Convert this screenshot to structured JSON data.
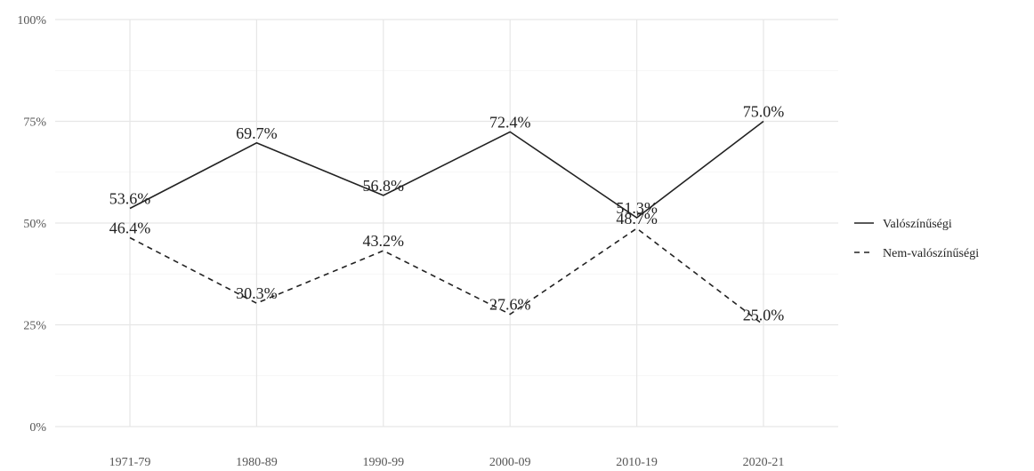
{
  "chart_data": {
    "type": "line",
    "title": "",
    "xlabel": "",
    "ylabel": "",
    "categories": [
      "1971-79",
      "1980-89",
      "1990-99",
      "2000-09",
      "2010-19",
      "2020-21"
    ],
    "ylim": [
      0,
      100
    ],
    "yticks": [
      0,
      25,
      50,
      75,
      100
    ],
    "ytick_labels": [
      "0%",
      "25%",
      "50%",
      "75%",
      "100%"
    ],
    "grid": true,
    "legend_position": "right",
    "series": [
      {
        "name": "Valószínűségi",
        "values": [
          53.6,
          69.7,
          56.8,
          72.4,
          51.3,
          75.0
        ],
        "labels": [
          "53.6%",
          "69.7%",
          "56.8%",
          "72.4%",
          "51.3%",
          "75.0%"
        ],
        "line_style": "solid",
        "color": "#222222"
      },
      {
        "name": "Nem-valószínűségi",
        "values": [
          46.4,
          30.3,
          43.2,
          27.6,
          48.7,
          25.0
        ],
        "labels": [
          "46.4%",
          "30.3%",
          "43.2%",
          "27.6%",
          "48.7%",
          "25.0%"
        ],
        "line_style": "dashed",
        "color": "#222222"
      }
    ]
  }
}
